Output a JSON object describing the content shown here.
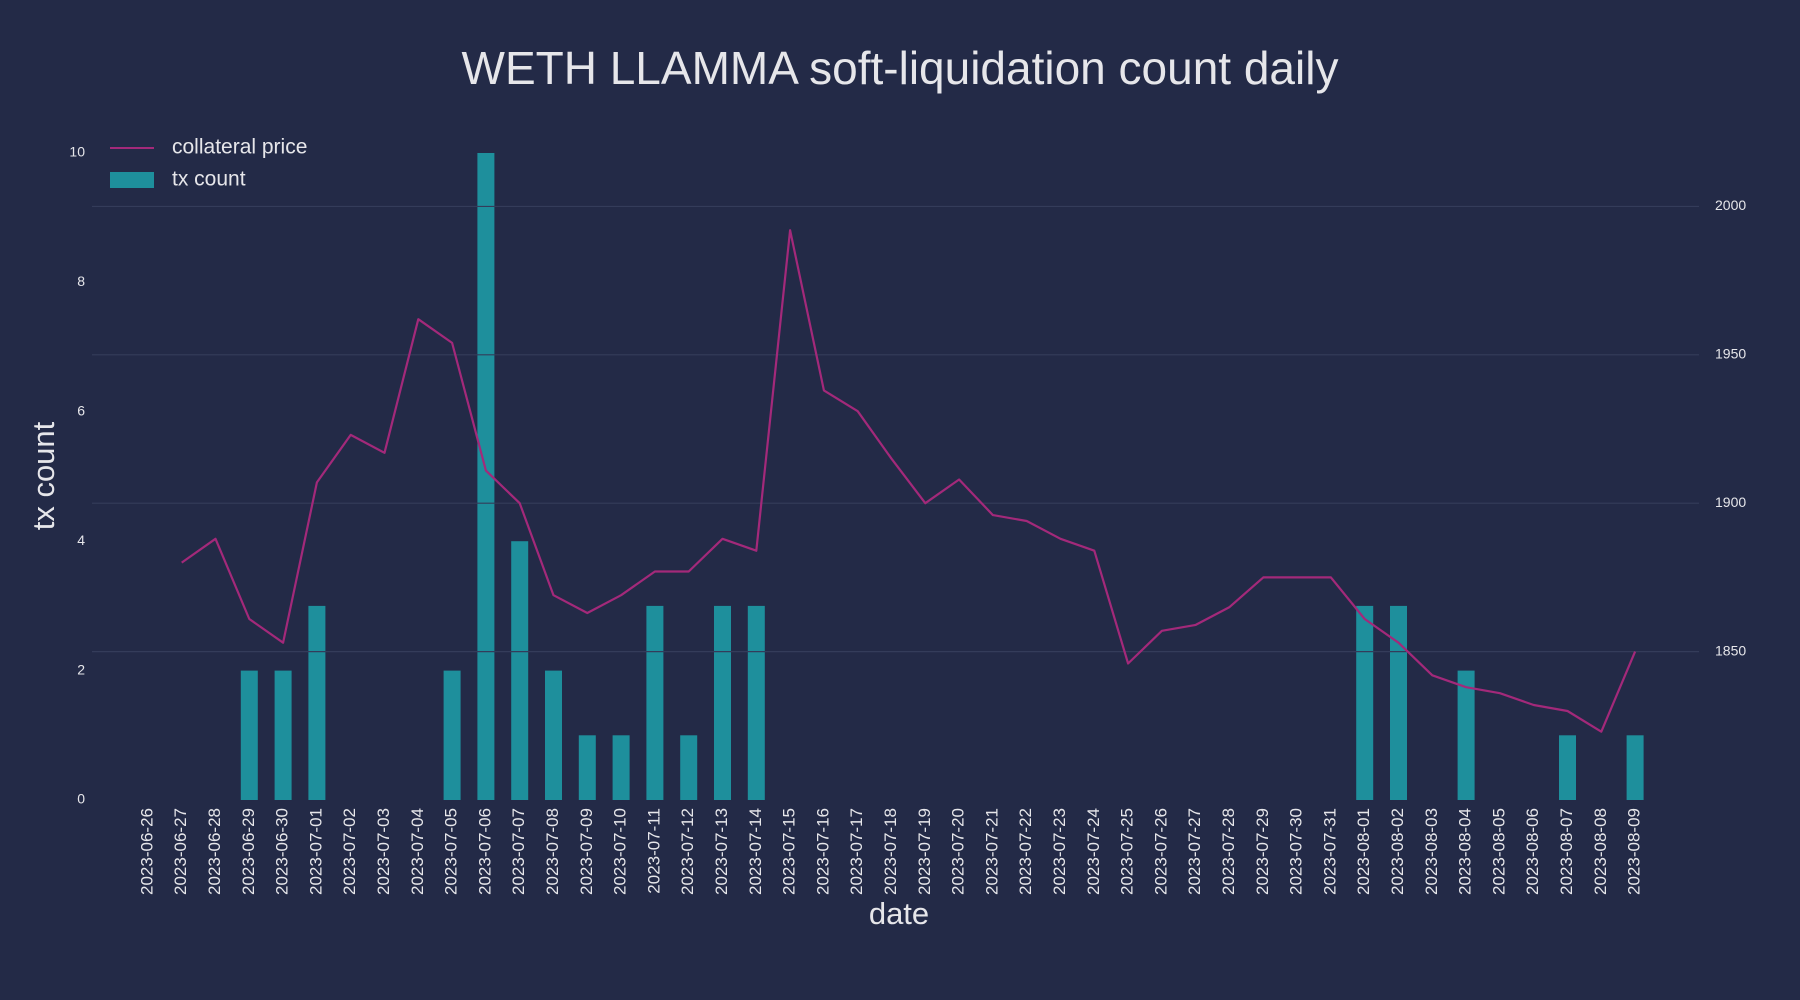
{
  "chart_data": {
    "type": "bar",
    "title": "WETH LLAMMA soft-liquidation count daily",
    "x_label": "date",
    "y_label": "tx count",
    "categories": [
      "2023-06-26",
      "2023-06-27",
      "2023-06-28",
      "2023-06-29",
      "2023-06-30",
      "2023-07-01",
      "2023-07-02",
      "2023-07-03",
      "2023-07-04",
      "2023-07-05",
      "2023-07-06",
      "2023-07-07",
      "2023-07-08",
      "2023-07-09",
      "2023-07-10",
      "2023-07-11",
      "2023-07-12",
      "2023-07-13",
      "2023-07-14",
      "2023-07-15",
      "2023-07-16",
      "2023-07-17",
      "2023-07-18",
      "2023-07-19",
      "2023-07-20",
      "2023-07-21",
      "2023-07-22",
      "2023-07-23",
      "2023-07-24",
      "2023-07-25",
      "2023-07-26",
      "2023-07-27",
      "2023-07-28",
      "2023-07-29",
      "2023-07-30",
      "2023-07-31",
      "2023-08-01",
      "2023-08-02",
      "2023-08-03",
      "2023-08-04",
      "2023-08-05",
      "2023-08-06",
      "2023-08-07",
      "2023-08-08",
      "2023-08-09"
    ],
    "series": [
      {
        "name": "collateral price",
        "type": "line",
        "axis": "y2",
        "color": "#a3297a",
        "values": [
          null,
          1880,
          1888,
          1861,
          1853,
          1907,
          1923,
          1917,
          1962,
          1954,
          1911,
          1900,
          1869,
          1863,
          1869,
          1877,
          1877,
          1888,
          1884,
          1992,
          1938,
          1931,
          1915,
          1900,
          1908,
          1896,
          1894,
          1888,
          1884,
          1846,
          1857,
          1859,
          1865,
          1875,
          1875,
          1875,
          1861,
          1853,
          1842,
          1838,
          1836,
          1832,
          1830,
          1823,
          1850
        ]
      },
      {
        "name": "tx count",
        "type": "bar",
        "color": "#1e8f9c",
        "values": [
          0,
          0,
          0,
          2,
          2,
          3,
          0,
          0,
          0,
          2,
          10,
          4,
          2,
          1,
          1,
          3,
          1,
          3,
          3,
          0,
          0,
          0,
          0,
          0,
          0,
          0,
          0,
          0,
          0,
          0,
          0,
          0,
          0,
          0,
          0,
          0,
          3,
          3,
          0,
          2,
          0,
          0,
          1,
          0,
          1
        ]
      }
    ],
    "ylim": [
      0,
      10
    ],
    "yticks": [
      0,
      2,
      4,
      6,
      8,
      10
    ],
    "y2lim": [
      1800,
      2018
    ],
    "y2ticks": [
      1850,
      1900,
      1950,
      2000
    ],
    "grid": true,
    "legend": "upper left"
  }
}
